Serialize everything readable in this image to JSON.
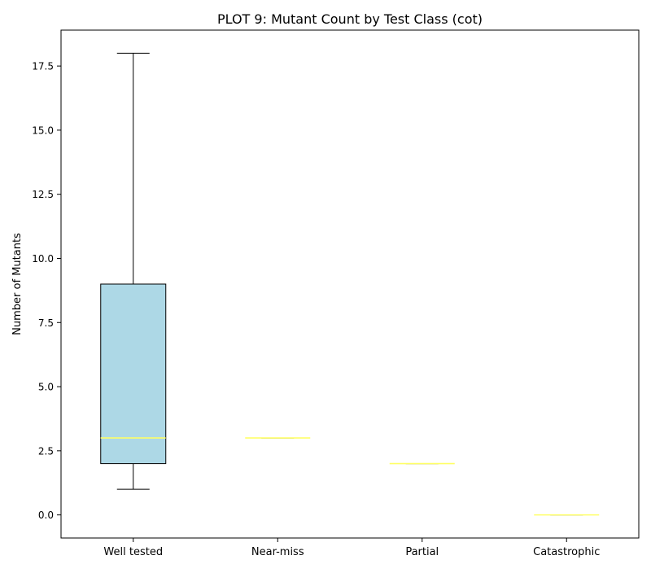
{
  "chart_data": {
    "type": "box",
    "title": "PLOT 9: Mutant Count by Test Class (cot)",
    "xlabel": "",
    "ylabel": "Number of Mutants",
    "ylim": [
      -0.9,
      18.9
    ],
    "yticks": [
      0.0,
      2.5,
      5.0,
      7.5,
      10.0,
      12.5,
      15.0,
      17.5
    ],
    "ytick_labels": [
      "0.0",
      "2.5",
      "5.0",
      "7.5",
      "10.0",
      "12.5",
      "15.0",
      "17.5"
    ],
    "categories": [
      "Well tested",
      "Near-miss",
      "Partial",
      "Catastrophic"
    ],
    "boxes": [
      {
        "category": "Well tested",
        "whisker_low": 1,
        "q1": 2,
        "median": 3,
        "q3": 9,
        "whisker_high": 18
      },
      {
        "category": "Near-miss",
        "whisker_low": 3,
        "q1": 3,
        "median": 3,
        "q3": 3,
        "whisker_high": 3
      },
      {
        "category": "Partial",
        "whisker_low": 2,
        "q1": 2,
        "median": 2,
        "q3": 2,
        "whisker_high": 2
      },
      {
        "category": "Catastrophic",
        "whisker_low": 0,
        "q1": 0,
        "median": 0,
        "q3": 0,
        "whisker_high": 0
      }
    ],
    "grid": false,
    "colors": {
      "box_fill": "#add8e6",
      "box_edge": "#000000",
      "median": "#ffff66",
      "whisker": "#000000"
    }
  }
}
